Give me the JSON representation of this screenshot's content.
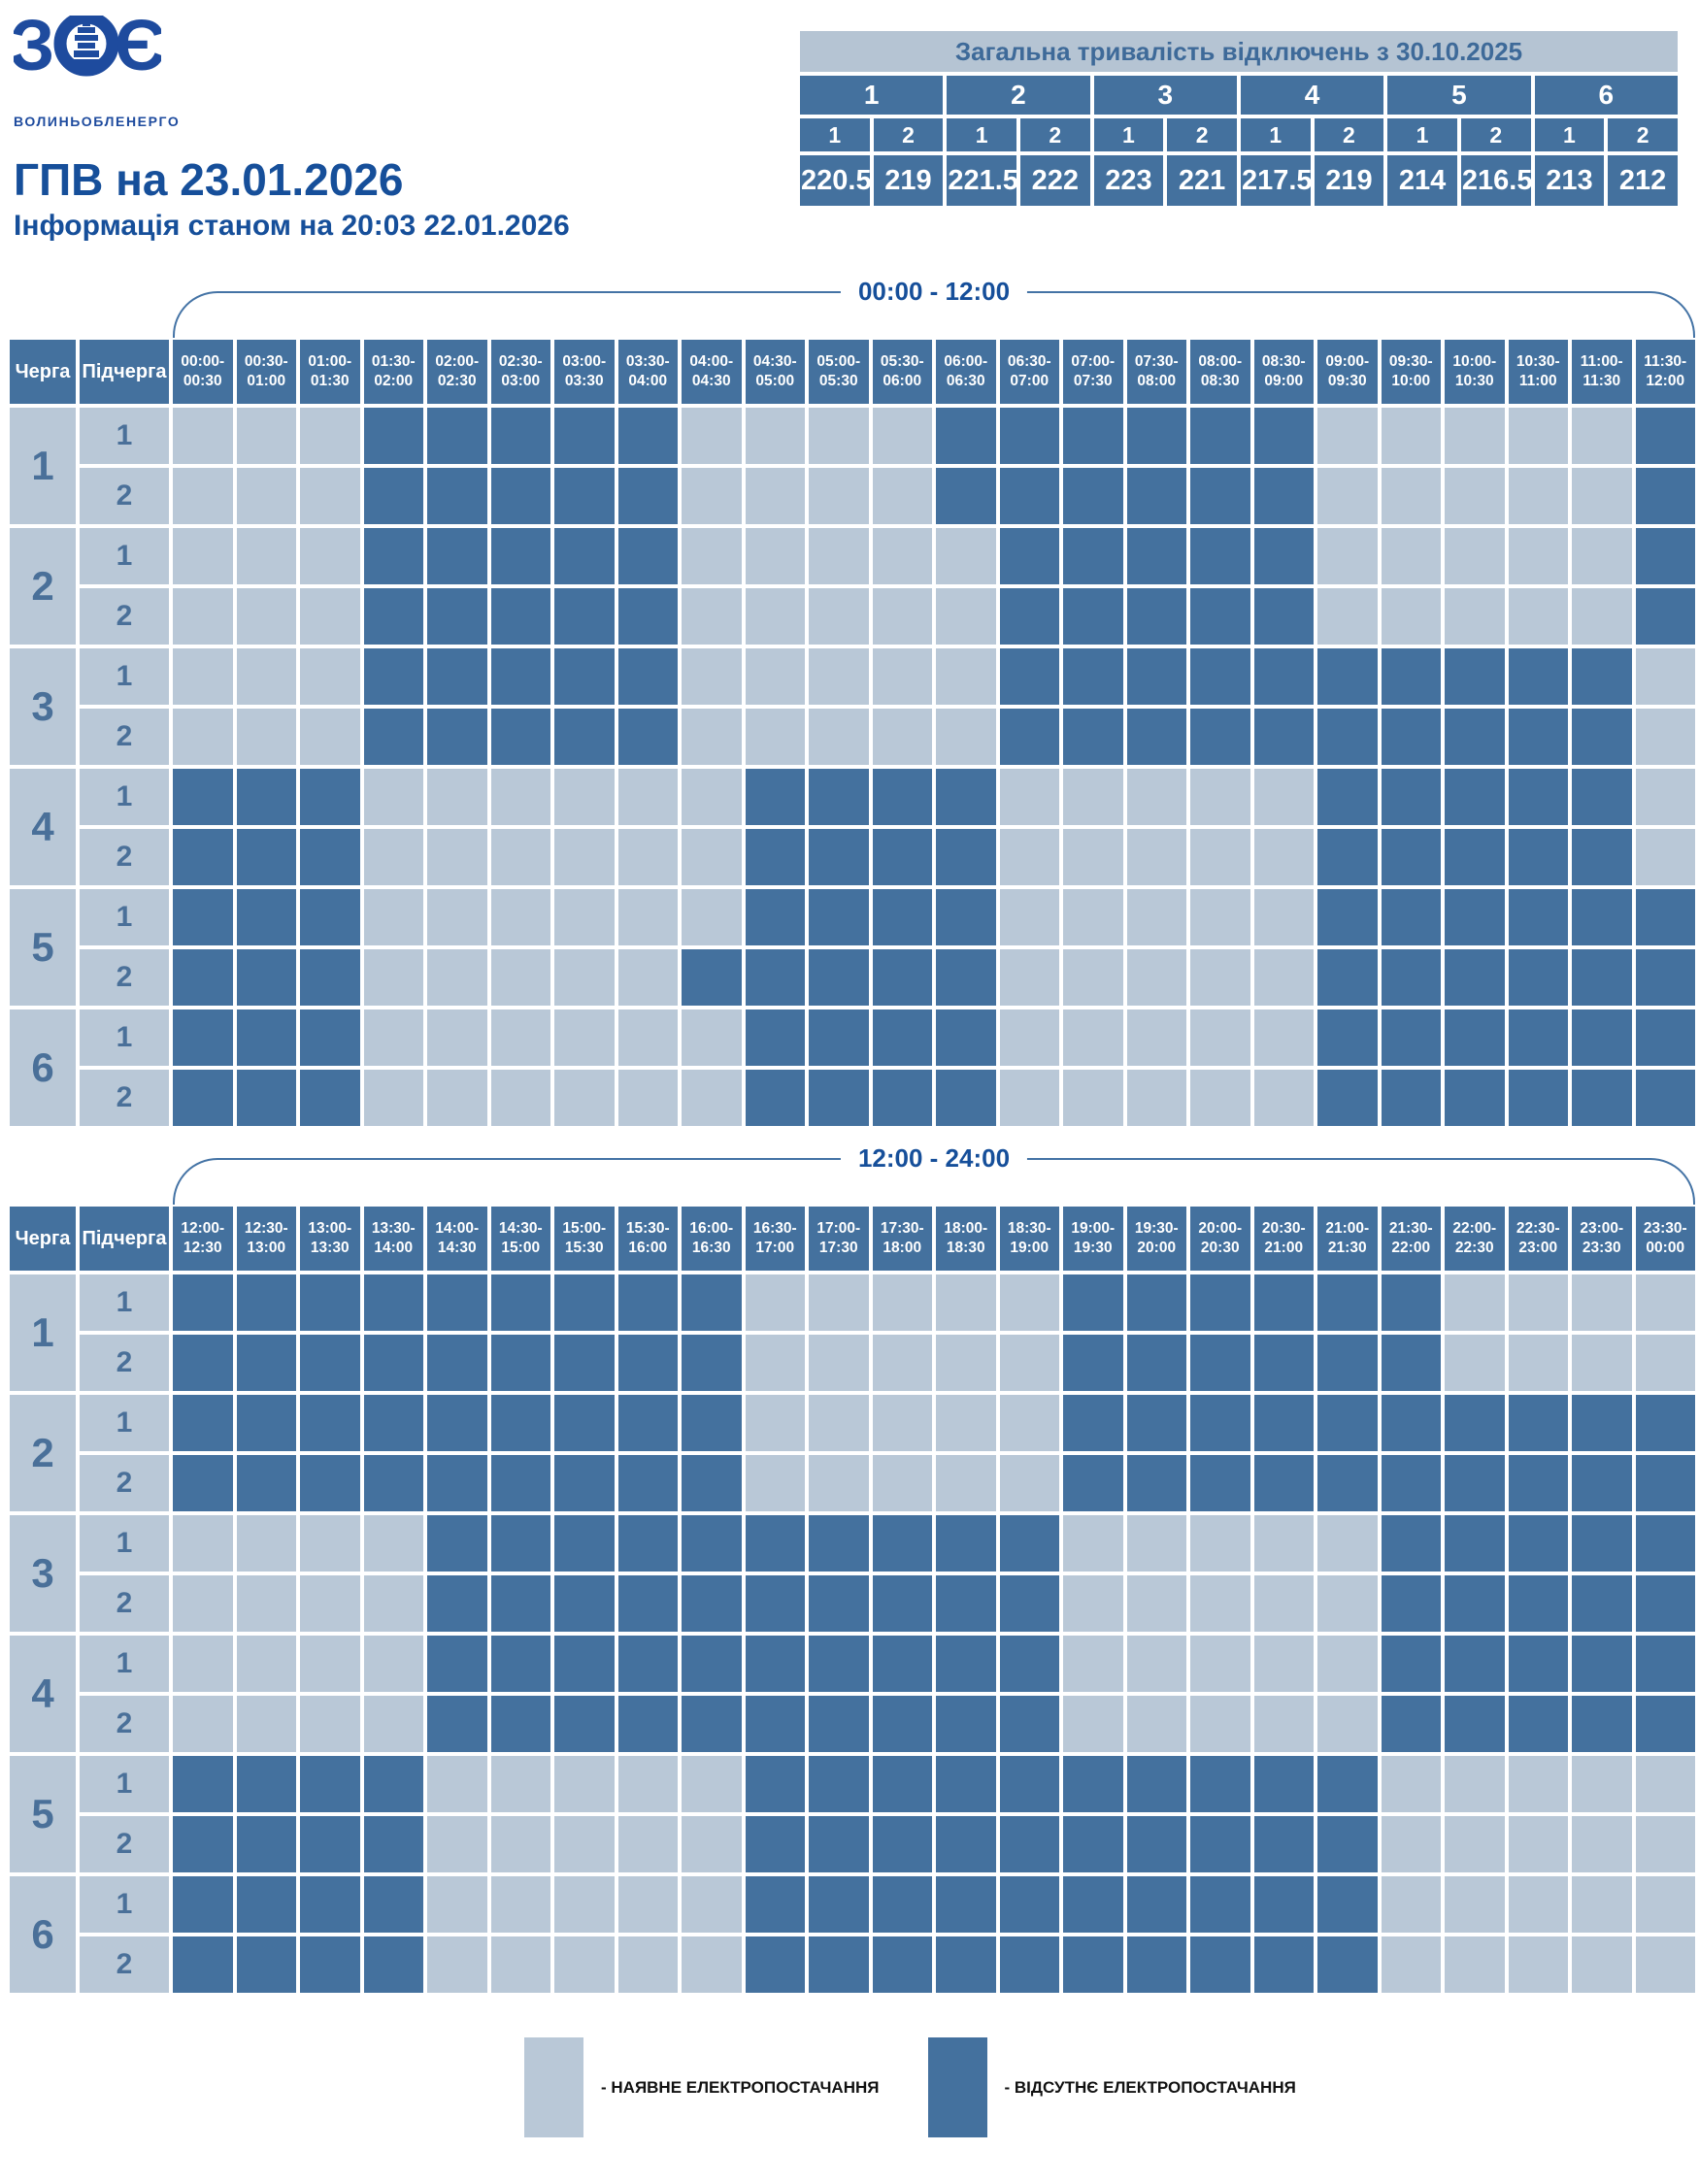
{
  "colors": {
    "available": "#b9c8d7",
    "absent": "#44719e",
    "accent": "#164f9a",
    "logo-blue": "#1e4b9e",
    "num-blue": "#4a7099",
    "panel-light": "#b5c4d3",
    "panel-text": "#3e6a99",
    "bracket-line": "#4473a5",
    "legend-text": "#111111"
  },
  "logo": {
    "letter_left": "З",
    "letter_right": "Є",
    "company": "ВОЛИНЬОБЛЕНЕРГО"
  },
  "header": {
    "title": "ГПВ на 23.01.2026",
    "subtitle": "Інформація станом на 20:03 22.01.2026"
  },
  "totals_table": {
    "title": "Загальна тривалість відключень з 30.10.2025",
    "queues": [
      "1",
      "2",
      "3",
      "4",
      "5",
      "6"
    ],
    "subqueues": [
      "1",
      "2",
      "1",
      "2",
      "1",
      "2",
      "1",
      "2",
      "1",
      "2",
      "1",
      "2"
    ],
    "values": [
      "220.5",
      "219",
      "221.5",
      "222",
      "223",
      "221",
      "217.5",
      "219",
      "214",
      "216.5",
      "213",
      "212"
    ]
  },
  "grid_labels": {
    "queue_header": "Черга",
    "subqueue_header": "Підчерга"
  },
  "grids": [
    {
      "period": "00:00 - 12:00",
      "time_slots": [
        "00:00-00:30",
        "00:30-01:00",
        "01:00-01:30",
        "01:30-02:00",
        "02:00-02:30",
        "02:30-03:00",
        "03:00-03:30",
        "03:30-04:00",
        "04:00-04:30",
        "04:30-05:00",
        "05:00-05:30",
        "05:30-06:00",
        "06:00-06:30",
        "06:30-07:00",
        "07:00-07:30",
        "07:30-08:00",
        "08:00-08:30",
        "08:30-09:00",
        "09:00-09:30",
        "09:30-10:00",
        "10:00-10:30",
        "10:30-11:00",
        "11:00-11:30",
        "11:30-12:00"
      ],
      "rows": [
        {
          "queue": "1",
          "subqueue": "1",
          "cells": "000111110000111111000001"
        },
        {
          "queue": "1",
          "subqueue": "2",
          "cells": "000111110000111111000001"
        },
        {
          "queue": "2",
          "subqueue": "1",
          "cells": "000111110000011111000001"
        },
        {
          "queue": "2",
          "subqueue": "2",
          "cells": "000111110000011111000001"
        },
        {
          "queue": "3",
          "subqueue": "1",
          "cells": "000111110000011111111110"
        },
        {
          "queue": "3",
          "subqueue": "2",
          "cells": "000111110000011111111110"
        },
        {
          "queue": "4",
          "subqueue": "1",
          "cells": "111000000111100000111110"
        },
        {
          "queue": "4",
          "subqueue": "2",
          "cells": "111000000111100000111110"
        },
        {
          "queue": "5",
          "subqueue": "1",
          "cells": "111000000111100000111111"
        },
        {
          "queue": "5",
          "subqueue": "2",
          "cells": "111000001111100000111111"
        },
        {
          "queue": "6",
          "subqueue": "1",
          "cells": "111000000111100000111111"
        },
        {
          "queue": "6",
          "subqueue": "2",
          "cells": "111000000111100000111111"
        }
      ]
    },
    {
      "period": "12:00 - 24:00",
      "time_slots": [
        "12:00-12:30",
        "12:30-13:00",
        "13:00-13:30",
        "13:30-14:00",
        "14:00-14:30",
        "14:30-15:00",
        "15:00-15:30",
        "15:30-16:00",
        "16:00-16:30",
        "16:30-17:00",
        "17:00-17:30",
        "17:30-18:00",
        "18:00-18:30",
        "18:30-19:00",
        "19:00-19:30",
        "19:30-20:00",
        "20:00-20:30",
        "20:30-21:00",
        "21:00-21:30",
        "21:30-22:00",
        "22:00-22:30",
        "22:30-23:00",
        "23:00-23:30",
        "23:30-00:00"
      ],
      "rows": [
        {
          "queue": "1",
          "subqueue": "1",
          "cells": "111111111000001111110000"
        },
        {
          "queue": "1",
          "subqueue": "2",
          "cells": "111111111000001111110000"
        },
        {
          "queue": "2",
          "subqueue": "1",
          "cells": "111111111000001111111111"
        },
        {
          "queue": "2",
          "subqueue": "2",
          "cells": "111111111000001111111111"
        },
        {
          "queue": "3",
          "subqueue": "1",
          "cells": "000011111111110000011111"
        },
        {
          "queue": "3",
          "subqueue": "2",
          "cells": "000011111111110000011111"
        },
        {
          "queue": "4",
          "subqueue": "1",
          "cells": "000011111111110000011111"
        },
        {
          "queue": "4",
          "subqueue": "2",
          "cells": "000011111111110000011111"
        },
        {
          "queue": "5",
          "subqueue": "1",
          "cells": "111100000111111111100000"
        },
        {
          "queue": "5",
          "subqueue": "2",
          "cells": "111100000111111111100000"
        },
        {
          "queue": "6",
          "subqueue": "1",
          "cells": "111100000111111111100000"
        },
        {
          "queue": "6",
          "subqueue": "2",
          "cells": "111100000111111111100000"
        }
      ]
    }
  ],
  "legend": [
    {
      "state": "available",
      "label": "- НАЯВНЕ ЕЛЕКТРОПОСТАЧАННЯ"
    },
    {
      "state": "absent",
      "label": "- ВІДСУТНЄ ЕЛЕКТРОПОСТАЧАННЯ"
    }
  ]
}
